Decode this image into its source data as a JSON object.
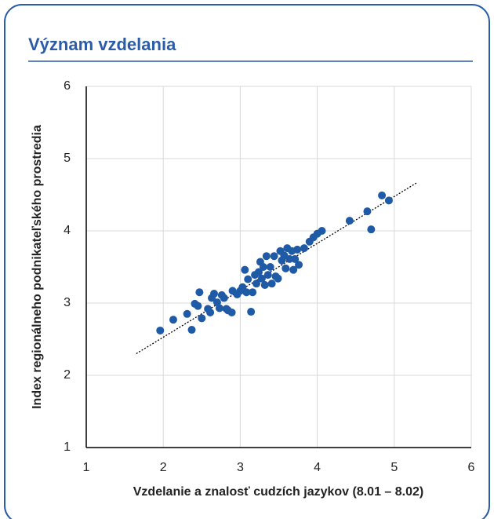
{
  "chart_data": {
    "type": "scatter",
    "title": "Význam vzdelania",
    "x_label": "Vzdelanie a znalosť cudzích jazykov (8.01 – 8.02)",
    "y_label": "Index regionálneho podnikateľského prostredia",
    "xlim": [
      1,
      6
    ],
    "ylim": [
      1,
      6
    ],
    "xticks": [
      1,
      2,
      3,
      4,
      5,
      6
    ],
    "yticks": [
      1,
      2,
      3,
      4,
      5,
      6
    ],
    "grid": true,
    "color": "#1f5aa6",
    "x": [
      1.96,
      2.13,
      2.31,
      2.37,
      2.41,
      2.45,
      2.47,
      2.5,
      2.58,
      2.61,
      2.63,
      2.66,
      2.7,
      2.73,
      2.76,
      2.79,
      2.82,
      2.84,
      2.89,
      2.9,
      2.96,
      3.0,
      3.03,
      3.06,
      3.08,
      3.1,
      3.14,
      3.16,
      3.19,
      3.21,
      3.24,
      3.26,
      3.28,
      3.3,
      3.32,
      3.34,
      3.36,
      3.39,
      3.41,
      3.44,
      3.46,
      3.49,
      3.52,
      3.54,
      3.57,
      3.59,
      3.61,
      3.64,
      3.67,
      3.69,
      3.71,
      3.74,
      3.76,
      3.83,
      3.9,
      3.95,
      4.0,
      4.06,
      4.42,
      4.65,
      4.7,
      4.84,
      4.93
    ],
    "values": [
      2.62,
      2.77,
      2.85,
      2.63,
      2.99,
      2.96,
      3.15,
      2.79,
      2.92,
      2.87,
      3.07,
      3.13,
      3.01,
      2.93,
      3.11,
      3.07,
      2.92,
      2.9,
      2.87,
      3.17,
      3.12,
      3.17,
      3.22,
      3.46,
      3.15,
      3.33,
      2.88,
      3.15,
      3.39,
      3.27,
      3.43,
      3.57,
      3.34,
      3.5,
      3.25,
      3.65,
      3.39,
      3.5,
      3.27,
      3.65,
      3.37,
      3.34,
      3.72,
      3.59,
      3.66,
      3.48,
      3.76,
      3.61,
      3.72,
      3.46,
      3.61,
      3.74,
      3.53,
      3.76,
      3.85,
      3.91,
      3.96,
      4.0,
      4.14,
      4.27,
      4.02,
      4.49,
      4.42
    ],
    "trendline": {
      "x": [
        1.65,
        5.3
      ],
      "y": [
        2.3,
        4.67
      ],
      "color": "#000000"
    }
  }
}
